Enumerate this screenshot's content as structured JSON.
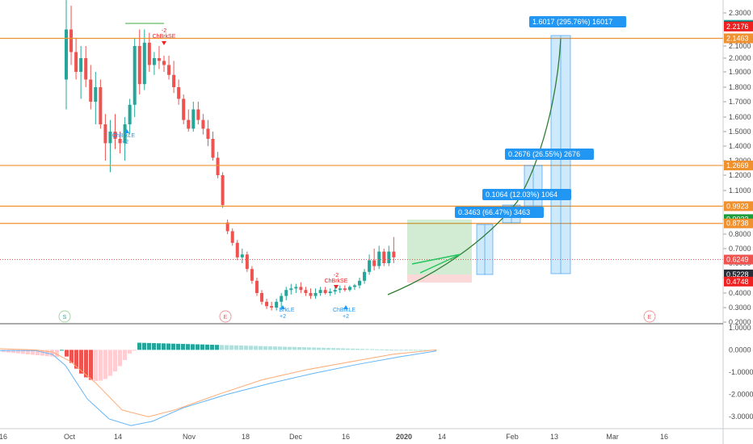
{
  "chart_data": [
    {
      "type": "candlestick",
      "title": "",
      "x_ticks": [
        "16",
        "Oct",
        "14",
        "Nov",
        "18",
        "Dec",
        "16",
        "2020",
        "14",
        "Feb",
        "13",
        "Mar",
        "16"
      ],
      "y_ticks": [
        "2.3000",
        "2.1000",
        "2.0000",
        "1.9000",
        "1.8000",
        "1.7000",
        "1.6000",
        "1.5000",
        "1.4000",
        "1.3000",
        "1.2000",
        "1.1000",
        "1.0000",
        "0.9000",
        "0.8000",
        "0.7000",
        "0.6000",
        "0.5000",
        "0.4000",
        "0.3000",
        "0.2000"
      ],
      "ylim": [
        0.2,
        2.35
      ],
      "grid": false,
      "price_tags": [
        {
          "text": "2.2283",
          "value": 2.2283,
          "color": "#26a69a"
        },
        {
          "text": "2.2200",
          "value": 2.22,
          "color": "#2a2e39"
        },
        {
          "text": "2.2176",
          "value": 2.2176,
          "color": "#ef2020"
        },
        {
          "text": "2.1463",
          "value": 2.1463,
          "color": "#f0912f"
        },
        {
          "text": "1.2669",
          "value": 1.2669,
          "color": "#f0912f"
        },
        {
          "text": "0.9923",
          "value": 0.9923,
          "color": "#f0912f"
        },
        {
          "text": "0.9033",
          "value": 0.9033,
          "color": "#1a9c3a"
        },
        {
          "text": "0.8738",
          "value": 0.8738,
          "color": "#f0912f"
        },
        {
          "text": "0.6249",
          "value": 0.6249,
          "color": "#ef5350"
        },
        {
          "text": "0.5228",
          "value": 0.5228,
          "color": "#2a2e39"
        },
        {
          "text": "0.4748",
          "value": 0.4748,
          "color": "#ef2020"
        }
      ],
      "horizontal_levels": [
        2.1463,
        1.2669,
        0.9923,
        0.8738
      ],
      "dashed_levels": [
        0.6249
      ],
      "projection_labels": [
        "1.6017 (295.76%) 16017",
        "0.2676 (26.55%) 2676",
        "0.1064 (12.03%) 1064",
        "0.3463 (66.47%) 3463"
      ],
      "signals": [
        "-2",
        "ChBrkSE",
        "ChBrkLE",
        "+2",
        "-2",
        "ChBrkSE",
        "ChBrkLE",
        "+2",
        "BrkLE",
        "+2"
      ],
      "markers": [
        "S",
        "E",
        "E"
      ],
      "candles": [
        [
          1.85,
          2.45,
          1.65,
          2.2
        ],
        [
          2.2,
          2.35,
          1.95,
          2.05
        ],
        [
          2.05,
          2.15,
          1.85,
          1.9
        ],
        [
          1.9,
          2.1,
          1.72,
          2.0
        ],
        [
          2.0,
          2.1,
          1.8,
          1.85
        ],
        [
          1.85,
          1.95,
          1.65,
          1.7
        ],
        [
          1.7,
          1.9,
          1.55,
          1.8
        ],
        [
          1.8,
          1.85,
          1.52,
          1.55
        ],
        [
          1.55,
          1.62,
          1.3,
          1.42
        ],
        [
          1.42,
          1.58,
          1.22,
          1.5
        ],
        [
          1.5,
          1.62,
          1.38,
          1.45
        ],
        [
          1.45,
          1.5,
          1.35,
          1.42
        ],
        [
          1.42,
          1.6,
          1.3,
          1.55
        ],
        [
          1.55,
          1.72,
          1.48,
          1.68
        ],
        [
          1.68,
          2.15,
          1.6,
          2.1
        ],
        [
          2.1,
          2.2,
          1.75,
          1.82
        ],
        [
          1.82,
          2.2,
          1.78,
          2.12
        ],
        [
          2.12,
          2.18,
          1.9,
          1.95
        ],
        [
          1.95,
          2.05,
          1.88,
          2.0
        ],
        [
          2.0,
          2.1,
          1.92,
          1.98
        ],
        [
          1.98,
          2.02,
          1.9,
          1.95
        ],
        [
          1.95,
          2.02,
          1.85,
          1.88
        ],
        [
          1.88,
          1.98,
          1.76,
          1.8
        ],
        [
          1.8,
          1.85,
          1.68,
          1.72
        ],
        [
          1.72,
          1.75,
          1.55,
          1.58
        ],
        [
          1.58,
          1.65,
          1.5,
          1.52
        ],
        [
          1.52,
          1.7,
          1.5,
          1.65
        ],
        [
          1.65,
          1.7,
          1.55,
          1.58
        ],
        [
          1.58,
          1.62,
          1.48,
          1.52
        ],
        [
          1.52,
          1.58,
          1.4,
          1.45
        ],
        [
          1.45,
          1.5,
          1.3,
          1.32
        ],
        [
          1.32,
          1.36,
          1.18,
          1.2
        ],
        [
          1.2,
          1.22,
          0.98,
          1.0
        ],
        [
          0.88,
          0.9,
          0.8,
          0.82
        ],
        [
          0.82,
          0.84,
          0.72,
          0.74
        ],
        [
          0.74,
          0.76,
          0.62,
          0.64
        ],
        [
          0.64,
          0.7,
          0.6,
          0.66
        ],
        [
          0.66,
          0.68,
          0.54,
          0.56
        ],
        [
          0.56,
          0.58,
          0.46,
          0.48
        ],
        [
          0.48,
          0.5,
          0.38,
          0.4
        ],
        [
          0.4,
          0.42,
          0.32,
          0.34
        ],
        [
          0.34,
          0.36,
          0.29,
          0.31
        ],
        [
          0.31,
          0.34,
          0.28,
          0.3
        ],
        [
          0.3,
          0.36,
          0.28,
          0.34
        ],
        [
          0.34,
          0.4,
          0.3,
          0.38
        ],
        [
          0.38,
          0.44,
          0.35,
          0.42
        ],
        [
          0.42,
          0.46,
          0.39,
          0.43
        ],
        [
          0.43,
          0.46,
          0.4,
          0.44
        ],
        [
          0.44,
          0.47,
          0.4,
          0.42
        ],
        [
          0.42,
          0.44,
          0.38,
          0.4
        ],
        [
          0.4,
          0.43,
          0.36,
          0.38
        ],
        [
          0.38,
          0.43,
          0.36,
          0.4
        ],
        [
          0.4,
          0.44,
          0.38,
          0.42
        ],
        [
          0.42,
          0.44,
          0.39,
          0.4
        ],
        [
          0.4,
          0.43,
          0.38,
          0.41
        ],
        [
          0.41,
          0.44,
          0.39,
          0.42
        ],
        [
          0.42,
          0.45,
          0.4,
          0.43
        ],
        [
          0.43,
          0.45,
          0.41,
          0.42
        ],
        [
          0.42,
          0.45,
          0.41,
          0.44
        ],
        [
          0.44,
          0.46,
          0.42,
          0.45
        ],
        [
          0.45,
          0.5,
          0.43,
          0.48
        ],
        [
          0.48,
          0.56,
          0.46,
          0.54
        ],
        [
          0.54,
          0.66,
          0.52,
          0.62
        ],
        [
          0.62,
          0.7,
          0.55,
          0.58
        ],
        [
          0.58,
          0.72,
          0.56,
          0.68
        ],
        [
          0.68,
          0.7,
          0.58,
          0.6
        ],
        [
          0.6,
          0.72,
          0.58,
          0.68
        ],
        [
          0.68,
          0.78,
          0.6,
          0.64
        ]
      ],
      "oscillator": {
        "ylabels": [
          "1.0000",
          "0.0000",
          "-1.0000",
          "-2.0000",
          "-3.0000"
        ],
        "ylim": [
          -3.5,
          1.1
        ],
        "line1": [
          [
            0,
            -0.03
          ],
          [
            8,
            -0.03
          ],
          [
            12,
            -0.2
          ],
          [
            15,
            -0.7
          ],
          [
            20,
            -2.2
          ],
          [
            25,
            -3.1
          ],
          [
            30,
            -3.4
          ],
          [
            35,
            -3.2
          ],
          [
            42,
            -2.6
          ],
          [
            52,
            -2.0
          ],
          [
            62,
            -1.5
          ],
          [
            72,
            -1.05
          ],
          [
            82,
            -0.65
          ],
          [
            92,
            -0.3
          ],
          [
            100,
            -0.05
          ]
        ],
        "line2": [
          [
            0,
            0.05
          ],
          [
            8,
            0.0
          ],
          [
            12,
            -0.1
          ],
          [
            16,
            -0.5
          ],
          [
            22,
            -1.5
          ],
          [
            28,
            -2.7
          ],
          [
            34,
            -3.0
          ],
          [
            40,
            -2.7
          ],
          [
            50,
            -2.0
          ],
          [
            60,
            -1.35
          ],
          [
            70,
            -0.9
          ],
          [
            80,
            -0.55
          ],
          [
            90,
            -0.2
          ],
          [
            100,
            0.0
          ]
        ]
      }
    }
  ]
}
